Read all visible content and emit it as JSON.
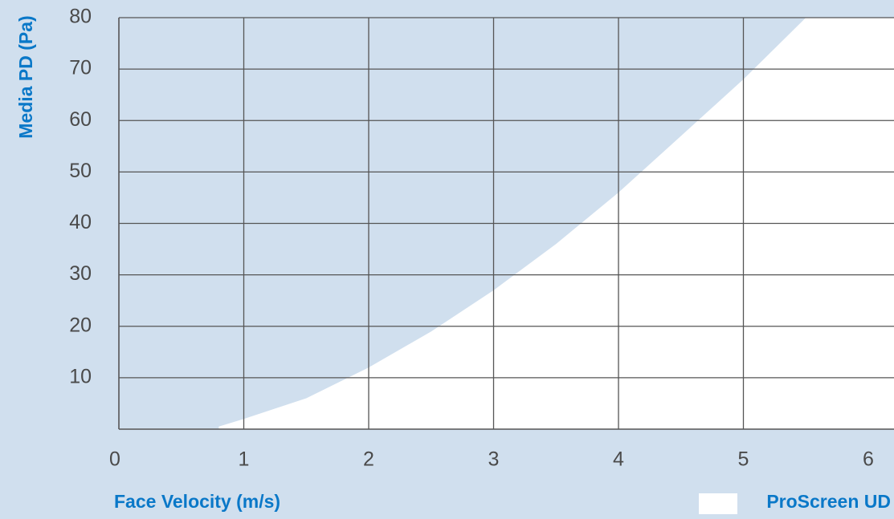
{
  "chart_data": {
    "type": "area",
    "title": "",
    "xlabel": "Face Velocity (m/s)",
    "ylabel": "Media PD (Pa)",
    "xlim": [
      0,
      7
    ],
    "ylim": [
      0,
      80
    ],
    "x_ticks": [
      "0",
      "1",
      "2",
      "3",
      "4",
      "5",
      "6"
    ],
    "y_ticks": [
      "10",
      "20",
      "30",
      "40",
      "50",
      "60",
      "70",
      "80"
    ],
    "grid": true,
    "legend_position": "bottom-right",
    "series": [
      {
        "name": "ProScreen UD",
        "color": "#ffffff",
        "x": [
          0.8,
          1.0,
          1.5,
          2.0,
          2.5,
          3.0,
          3.5,
          4.0,
          4.5,
          5.0,
          5.5
        ],
        "y": [
          0.5,
          2,
          6,
          12,
          19,
          27,
          36,
          46,
          57,
          68,
          80
        ]
      }
    ]
  },
  "colors": {
    "background": "#d0dfee",
    "grid": "#555555",
    "accent": "#0a78c8",
    "tick_text": "#4a4a4a"
  }
}
